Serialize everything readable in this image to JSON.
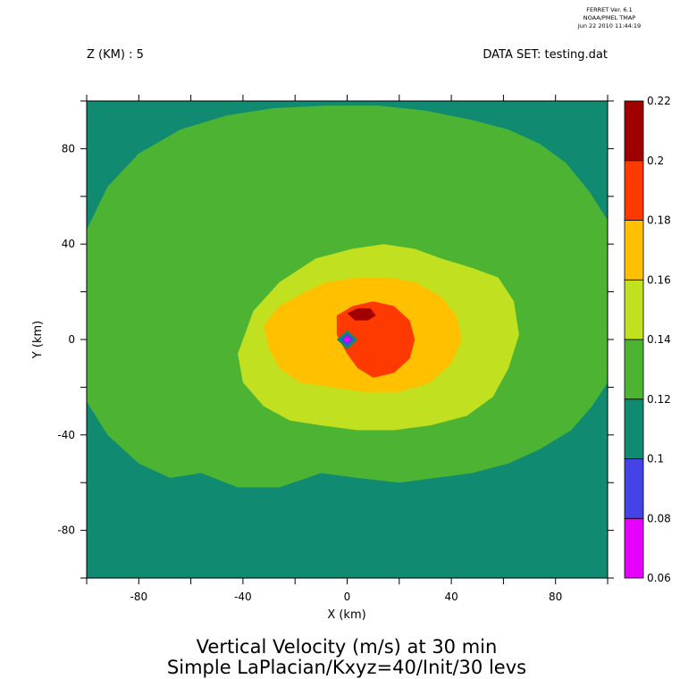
{
  "header": {
    "stamp_line1": "FERRET Ver. 6.1",
    "stamp_line2": "NOAA/PMEL TMAP",
    "stamp_line3": "Jun 22 2010 11:44:19",
    "z_label": "Z (KM) : 5",
    "dataset_label": "DATA SET: testing.dat"
  },
  "footer": {
    "title_line1": "Vertical Velocity (m/s) at 30 min",
    "title_line2": "Simple LaPlacian/Kxyz=40/Init/30 levs"
  },
  "chart_data": {
    "type": "heatmap",
    "xlabel": "X (km)",
    "ylabel": "Y (km)",
    "xlim": [
      -100,
      100
    ],
    "ylim": [
      -100,
      100
    ],
    "x_ticks": [
      -80,
      -40,
      0,
      40,
      80
    ],
    "y_ticks": [
      80,
      40,
      0,
      -40,
      -80
    ],
    "x_tick_labels": [
      "-80",
      "-40",
      "0",
      "40",
      "80"
    ],
    "y_tick_labels": [
      "80",
      "40",
      "0",
      "-40",
      "-80"
    ],
    "colorbar": {
      "levels": [
        0.06,
        0.08,
        0.1,
        0.12,
        0.14,
        0.16,
        0.18,
        0.2,
        0.22
      ],
      "level_labels": [
        "0.06",
        "0.08",
        "0.1",
        "0.12",
        "0.14",
        "0.16",
        "0.18",
        "0.2",
        "0.22"
      ],
      "colors": [
        "#e800ff",
        "#4444e6",
        "#118a72",
        "#4cb432",
        "#c0e020",
        "#ffc000",
        "#ff3a00",
        "#a00000"
      ]
    },
    "contour_regions": [
      {
        "level_min": 0.1,
        "level_max": 0.12,
        "description": "background",
        "points": [
          [
            -100,
            -100
          ],
          [
            100,
            -100
          ],
          [
            100,
            100
          ],
          [
            -100,
            100
          ]
        ]
      },
      {
        "level_min": 0.12,
        "level_max": 0.14,
        "points": [
          [
            -100,
            46
          ],
          [
            -92,
            64
          ],
          [
            -80,
            78
          ],
          [
            -64,
            88
          ],
          [
            -46,
            94
          ],
          [
            -28,
            97
          ],
          [
            -8,
            98
          ],
          [
            12,
            98
          ],
          [
            30,
            96
          ],
          [
            48,
            92
          ],
          [
            62,
            88
          ],
          [
            74,
            82
          ],
          [
            84,
            74
          ],
          [
            93,
            62
          ],
          [
            100,
            50
          ],
          [
            100,
            -18
          ],
          [
            94,
            -28
          ],
          [
            86,
            -38
          ],
          [
            74,
            -46
          ],
          [
            62,
            -52
          ],
          [
            48,
            -56
          ],
          [
            34,
            -58
          ],
          [
            20,
            -60
          ],
          [
            4,
            -58
          ],
          [
            -10,
            -56
          ],
          [
            -26,
            -62
          ],
          [
            -42,
            -62
          ],
          [
            -56,
            -56
          ],
          [
            -68,
            -58
          ],
          [
            -80,
            -52
          ],
          [
            -92,
            -40
          ],
          [
            -100,
            -26
          ]
        ]
      },
      {
        "level_min": 0.14,
        "level_max": 0.16,
        "points": [
          [
            -42,
            -6
          ],
          [
            -36,
            12
          ],
          [
            -26,
            24
          ],
          [
            -12,
            34
          ],
          [
            2,
            38
          ],
          [
            14,
            40
          ],
          [
            26,
            38
          ],
          [
            36,
            34
          ],
          [
            48,
            30
          ],
          [
            58,
            26
          ],
          [
            64,
            16
          ],
          [
            66,
            2
          ],
          [
            62,
            -12
          ],
          [
            56,
            -24
          ],
          [
            46,
            -32
          ],
          [
            32,
            -36
          ],
          [
            18,
            -38
          ],
          [
            4,
            -38
          ],
          [
            -10,
            -36
          ],
          [
            -22,
            -34
          ],
          [
            -32,
            -28
          ],
          [
            -40,
            -18
          ]
        ]
      },
      {
        "level_min": 0.16,
        "level_max": 0.18,
        "points": [
          [
            -32,
            6
          ],
          [
            -26,
            14
          ],
          [
            -16,
            20
          ],
          [
            -8,
            24
          ],
          [
            4,
            26
          ],
          [
            16,
            26
          ],
          [
            26,
            24
          ],
          [
            36,
            18
          ],
          [
            42,
            10
          ],
          [
            44,
            0
          ],
          [
            40,
            -10
          ],
          [
            32,
            -18
          ],
          [
            20,
            -22
          ],
          [
            6,
            -22
          ],
          [
            -6,
            -20
          ],
          [
            -18,
            -18
          ],
          [
            -26,
            -12
          ],
          [
            -30,
            -4
          ]
        ]
      },
      {
        "level_min": 0.18,
        "level_max": 0.2,
        "points": [
          [
            -4,
            10
          ],
          [
            2,
            14
          ],
          [
            10,
            16
          ],
          [
            18,
            14
          ],
          [
            24,
            8
          ],
          [
            26,
            0
          ],
          [
            24,
            -8
          ],
          [
            18,
            -14
          ],
          [
            10,
            -16
          ],
          [
            4,
            -12
          ],
          [
            0,
            -6
          ],
          [
            -4,
            2
          ]
        ]
      },
      {
        "level_min": 0.2,
        "level_max": 0.22,
        "points": [
          [
            0,
            11
          ],
          [
            4,
            13
          ],
          [
            9,
            13
          ],
          [
            11,
            10
          ],
          [
            8,
            8
          ],
          [
            3,
            8
          ]
        ]
      },
      {
        "level_min": 0.1,
        "level_max": 0.12,
        "points": [
          [
            -4,
            0
          ],
          [
            0,
            4
          ],
          [
            4,
            0
          ],
          [
            0,
            -4
          ]
        ]
      },
      {
        "level_min": 0.08,
        "level_max": 0.1,
        "points": [
          [
            -2.5,
            0
          ],
          [
            0,
            2.5
          ],
          [
            2.5,
            0
          ],
          [
            0,
            -2.5
          ]
        ]
      },
      {
        "level_min": 0.06,
        "level_max": 0.08,
        "points": [
          [
            -1.5,
            0
          ],
          [
            0,
            1.5
          ],
          [
            1.5,
            0
          ],
          [
            0,
            -1.5
          ]
        ]
      }
    ]
  }
}
